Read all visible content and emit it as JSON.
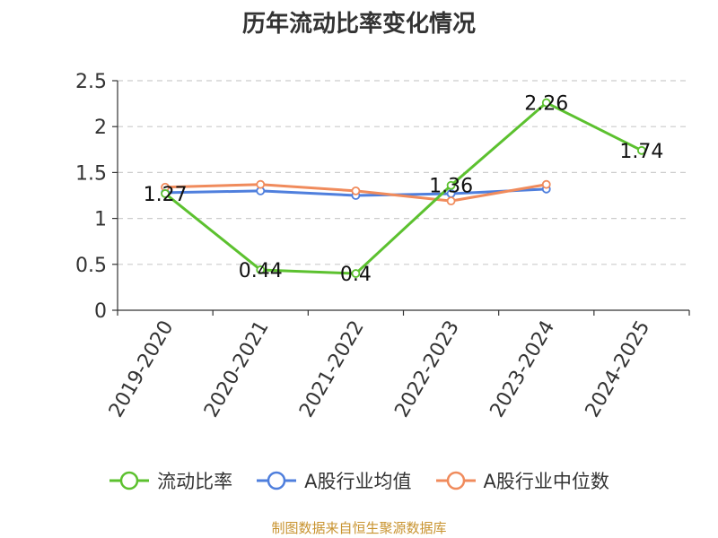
{
  "chart_data": {
    "type": "line",
    "title": "历年流动比率变化情况",
    "categories": [
      "2019-2020",
      "2020-2021",
      "2021-2022",
      "2022-2023",
      "2023-2024",
      "2024-2025"
    ],
    "ylim": [
      0,
      2.5
    ],
    "yticks": [
      "0",
      "0.5",
      "1",
      "1.5",
      "2",
      "2.5"
    ],
    "grid": true,
    "legend_position": "bottom",
    "series": [
      {
        "name": "流动比率",
        "color": "#5cc12f",
        "values": [
          1.27,
          0.44,
          0.4,
          1.36,
          2.26,
          1.74
        ],
        "labels": [
          "1.27",
          "0.44",
          "0.4",
          "1.36",
          "2.26",
          "1.74"
        ]
      },
      {
        "name": "A股行业均值",
        "color": "#4f7fdd",
        "values": [
          1.28,
          1.3,
          1.25,
          1.27,
          1.32,
          null
        ]
      },
      {
        "name": "A股行业中位数",
        "color": "#f08b5c",
        "values": [
          1.34,
          1.37,
          1.3,
          1.19,
          1.37,
          null
        ]
      }
    ]
  },
  "source": "制图数据来自恒生聚源数据库"
}
